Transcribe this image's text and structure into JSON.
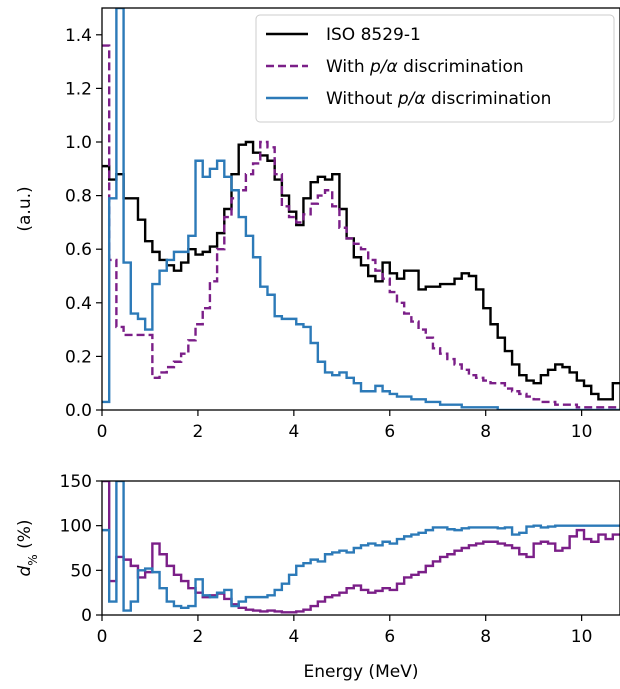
{
  "chart_data": [
    {
      "type": "line",
      "step": true,
      "ylabel": "(a.u.)",
      "xlabel": "",
      "xlim": [
        0,
        10.8
      ],
      "ylim": [
        0,
        1.5
      ],
      "xticks": [
        0,
        2,
        4,
        6,
        8,
        10
      ],
      "yticks": [
        0.0,
        0.2,
        0.4,
        0.6,
        0.8,
        1.0,
        1.2,
        1.4
      ],
      "xtick_labels": [
        "0",
        "2",
        "4",
        "6",
        "8",
        "10"
      ],
      "ytick_labels": [
        "0.0",
        "0.2",
        "0.4",
        "0.6",
        "0.8",
        "1.0",
        "1.2",
        "1.4"
      ],
      "grid": false,
      "legend_position": "top-right",
      "legend": [
        {
          "prefix": "ISO 8529-1",
          "italic": "",
          "suffix": ""
        },
        {
          "prefix": "With ",
          "italic": "p/α",
          "suffix": " discrimination"
        },
        {
          "prefix": "Without ",
          "italic": "p/α",
          "suffix": " discrimination"
        }
      ],
      "series": [
        {
          "name": "ISO 8529-1",
          "color": "#000000",
          "dash": "solid",
          "x": [
            0.15,
            0.3,
            0.45,
            0.6,
            0.75,
            0.9,
            1.05,
            1.2,
            1.35,
            1.5,
            1.65,
            1.8,
            1.95,
            2.1,
            2.25,
            2.4,
            2.55,
            2.7,
            2.85,
            3.0,
            3.15,
            3.3,
            3.45,
            3.6,
            3.75,
            3.9,
            4.05,
            4.2,
            4.35,
            4.5,
            4.65,
            4.8,
            4.95,
            5.1,
            5.25,
            5.4,
            5.55,
            5.7,
            5.85,
            6.0,
            6.15,
            6.3,
            6.45,
            6.6,
            6.75,
            6.9,
            7.05,
            7.2,
            7.35,
            7.5,
            7.65,
            7.8,
            7.95,
            8.1,
            8.25,
            8.4,
            8.55,
            8.7,
            8.85,
            9.0,
            9.15,
            9.3,
            9.45,
            9.6,
            9.75,
            9.9,
            10.05,
            10.2,
            10.35,
            10.5,
            10.65,
            10.8
          ],
          "y": [
            0.91,
            0.86,
            0.88,
            0.79,
            0.79,
            0.71,
            0.63,
            0.59,
            0.56,
            0.54,
            0.52,
            0.55,
            0.6,
            0.58,
            0.59,
            0.61,
            0.66,
            0.75,
            0.88,
            0.99,
            1.0,
            0.96,
            0.95,
            0.93,
            0.86,
            0.8,
            0.74,
            0.69,
            0.79,
            0.85,
            0.87,
            0.86,
            0.88,
            0.75,
            0.64,
            0.57,
            0.54,
            0.5,
            0.48,
            0.55,
            0.51,
            0.49,
            0.52,
            0.52,
            0.45,
            0.46,
            0.46,
            0.47,
            0.47,
            0.49,
            0.51,
            0.5,
            0.45,
            0.38,
            0.32,
            0.27,
            0.22,
            0.17,
            0.13,
            0.11,
            0.1,
            0.13,
            0.15,
            0.17,
            0.16,
            0.14,
            0.11,
            0.09,
            0.06,
            0.04,
            0.04,
            0.1
          ]
        },
        {
          "name": "With p/α discrimination",
          "color": "#7b1f88",
          "dash": "dashed",
          "x": [
            0.15,
            0.3,
            0.45,
            0.6,
            0.75,
            0.9,
            1.05,
            1.2,
            1.35,
            1.5,
            1.65,
            1.8,
            1.95,
            2.1,
            2.25,
            2.4,
            2.55,
            2.7,
            2.85,
            3.0,
            3.15,
            3.3,
            3.45,
            3.6,
            3.75,
            3.9,
            4.05,
            4.2,
            4.35,
            4.5,
            4.65,
            4.8,
            4.95,
            5.1,
            5.25,
            5.4,
            5.55,
            5.7,
            5.85,
            6.0,
            6.15,
            6.3,
            6.45,
            6.6,
            6.75,
            6.9,
            7.05,
            7.2,
            7.35,
            7.5,
            7.65,
            7.8,
            7.95,
            8.1,
            8.25,
            8.4,
            8.55,
            8.7,
            8.85,
            9.0,
            9.15,
            9.3,
            9.45,
            9.6,
            9.75,
            9.9,
            10.05,
            10.2,
            10.35,
            10.5,
            10.65,
            10.8
          ],
          "y": [
            1.36,
            0.56,
            0.31,
            0.28,
            0.28,
            0.28,
            0.28,
            0.12,
            0.14,
            0.16,
            0.18,
            0.21,
            0.26,
            0.32,
            0.38,
            0.48,
            0.6,
            0.72,
            0.79,
            0.82,
            0.88,
            0.92,
            1.0,
            0.98,
            0.88,
            0.76,
            0.72,
            0.7,
            0.73,
            0.77,
            0.8,
            0.82,
            0.76,
            0.68,
            0.64,
            0.62,
            0.6,
            0.56,
            0.52,
            0.49,
            0.44,
            0.4,
            0.36,
            0.33,
            0.3,
            0.27,
            0.23,
            0.21,
            0.19,
            0.17,
            0.15,
            0.13,
            0.12,
            0.11,
            0.1,
            0.1,
            0.08,
            0.07,
            0.06,
            0.05,
            0.04,
            0.03,
            0.03,
            0.02,
            0.02,
            0.02,
            0.01,
            0.01,
            0.01,
            0.01,
            0.01,
            0.01
          ]
        },
        {
          "name": "Without p/α discrimination",
          "color": "#2c7ab8",
          "dash": "solid",
          "x": [
            0.15,
            0.3,
            0.45,
            0.6,
            0.75,
            0.9,
            1.05,
            1.2,
            1.35,
            1.5,
            1.65,
            1.8,
            1.95,
            2.1,
            2.25,
            2.4,
            2.55,
            2.7,
            2.85,
            3.0,
            3.15,
            3.3,
            3.45,
            3.6,
            3.75,
            3.9,
            4.05,
            4.2,
            4.35,
            4.5,
            4.65,
            4.8,
            4.95,
            5.1,
            5.25,
            5.4,
            5.55,
            5.7,
            5.85,
            6.0,
            6.15,
            6.3,
            6.45,
            6.6,
            6.75,
            6.9,
            7.05,
            7.2,
            7.35,
            7.5,
            7.65,
            7.8,
            7.95,
            8.1,
            8.25,
            8.4,
            8.55,
            8.7,
            8.85,
            9.0,
            9.15,
            9.3,
            9.45,
            9.6,
            9.75,
            9.9,
            10.05,
            10.2,
            10.35,
            10.5,
            10.65,
            10.8
          ],
          "y": [
            0.03,
            0.79,
            1.5,
            0.55,
            0.36,
            0.34,
            0.3,
            0.47,
            0.52,
            0.56,
            0.59,
            0.59,
            0.65,
            0.93,
            0.87,
            0.9,
            0.93,
            0.87,
            0.82,
            0.72,
            0.65,
            0.57,
            0.46,
            0.43,
            0.35,
            0.34,
            0.34,
            0.32,
            0.31,
            0.25,
            0.18,
            0.14,
            0.13,
            0.14,
            0.12,
            0.1,
            0.07,
            0.07,
            0.09,
            0.07,
            0.06,
            0.05,
            0.05,
            0.04,
            0.04,
            0.03,
            0.03,
            0.02,
            0.02,
            0.02,
            0.01,
            0.01,
            0.01,
            0.01,
            0.01,
            0.0,
            0.0,
            0.0,
            0.0,
            0.0,
            0.0,
            0.0,
            0.0,
            0.0,
            0.0,
            0.0,
            0.0,
            0.0,
            0.0,
            0.0,
            0.0,
            0.0
          ]
        }
      ]
    },
    {
      "type": "line",
      "step": true,
      "ylabel_italic": "d",
      "ylabel_sub": "%",
      "ylabel_suffix": " (%)",
      "xlabel": "Energy (MeV)",
      "xlim": [
        0,
        10.8
      ],
      "ylim": [
        0,
        150
      ],
      "xticks": [
        0,
        2,
        4,
        6,
        8,
        10
      ],
      "yticks": [
        0,
        50,
        100,
        150
      ],
      "xtick_labels": [
        "0",
        "2",
        "4",
        "6",
        "8",
        "10"
      ],
      "ytick_labels": [
        "0",
        "50",
        "100",
        "150"
      ],
      "grid": false,
      "series": [
        {
          "name": "With p/α discrimination",
          "color": "#7b1f88",
          "dash": "solid",
          "x": [
            0.15,
            0.3,
            0.45,
            0.6,
            0.75,
            0.9,
            1.05,
            1.2,
            1.35,
            1.5,
            1.65,
            1.8,
            1.95,
            2.1,
            2.25,
            2.4,
            2.55,
            2.7,
            2.85,
            3.0,
            3.15,
            3.3,
            3.45,
            3.6,
            3.75,
            3.9,
            4.05,
            4.2,
            4.35,
            4.5,
            4.65,
            4.8,
            4.95,
            5.1,
            5.25,
            5.4,
            5.55,
            5.7,
            5.85,
            6.0,
            6.15,
            6.3,
            6.45,
            6.6,
            6.75,
            6.9,
            7.05,
            7.2,
            7.35,
            7.5,
            7.65,
            7.8,
            7.95,
            8.1,
            8.25,
            8.4,
            8.55,
            8.7,
            8.85,
            9.0,
            9.15,
            9.3,
            9.45,
            9.6,
            9.75,
            9.9,
            10.05,
            10.2,
            10.35,
            10.5,
            10.65,
            10.8
          ],
          "y": [
            150,
            38,
            65,
            62,
            55,
            42,
            48,
            80,
            68,
            55,
            45,
            38,
            30,
            25,
            20,
            22,
            24,
            18,
            12,
            8,
            6,
            5,
            4,
            5,
            4,
            3,
            3,
            4,
            6,
            10,
            15,
            20,
            22,
            25,
            30,
            33,
            28,
            25,
            27,
            30,
            28,
            35,
            42,
            45,
            48,
            55,
            60,
            65,
            68,
            72,
            75,
            78,
            80,
            82,
            82,
            80,
            78,
            75,
            68,
            65,
            80,
            82,
            80,
            72,
            75,
            88,
            95,
            85,
            82,
            90,
            85,
            90
          ]
        },
        {
          "name": "Without p/α discrimination",
          "color": "#2c7ab8",
          "dash": "solid",
          "x": [
            0.15,
            0.3,
            0.45,
            0.6,
            0.75,
            0.9,
            1.05,
            1.2,
            1.35,
            1.5,
            1.65,
            1.8,
            1.95,
            2.1,
            2.25,
            2.4,
            2.55,
            2.7,
            2.85,
            3.0,
            3.15,
            3.3,
            3.45,
            3.6,
            3.75,
            3.9,
            4.05,
            4.2,
            4.35,
            4.5,
            4.65,
            4.8,
            4.95,
            5.1,
            5.25,
            5.4,
            5.55,
            5.7,
            5.85,
            6.0,
            6.15,
            6.3,
            6.45,
            6.6,
            6.75,
            6.9,
            7.05,
            7.2,
            7.35,
            7.5,
            7.65,
            7.8,
            7.95,
            8.1,
            8.25,
            8.4,
            8.55,
            8.7,
            8.85,
            9.0,
            9.15,
            9.3,
            9.45,
            9.6,
            9.75,
            9.9,
            10.05,
            10.2,
            10.35,
            10.5,
            10.65,
            10.8
          ],
          "y": [
            95,
            15,
            150,
            5,
            15,
            50,
            52,
            48,
            30,
            15,
            10,
            8,
            10,
            40,
            22,
            20,
            25,
            28,
            10,
            15,
            20,
            20,
            20,
            22,
            28,
            35,
            45,
            55,
            58,
            62,
            60,
            68,
            70,
            72,
            70,
            75,
            78,
            80,
            78,
            82,
            80,
            85,
            88,
            90,
            92,
            95,
            98,
            98,
            96,
            95,
            97,
            98,
            98,
            98,
            98,
            97,
            98,
            90,
            92,
            99,
            100,
            98,
            99,
            100,
            100,
            100,
            100,
            100,
            100,
            100,
            100,
            100
          ]
        }
      ]
    }
  ]
}
